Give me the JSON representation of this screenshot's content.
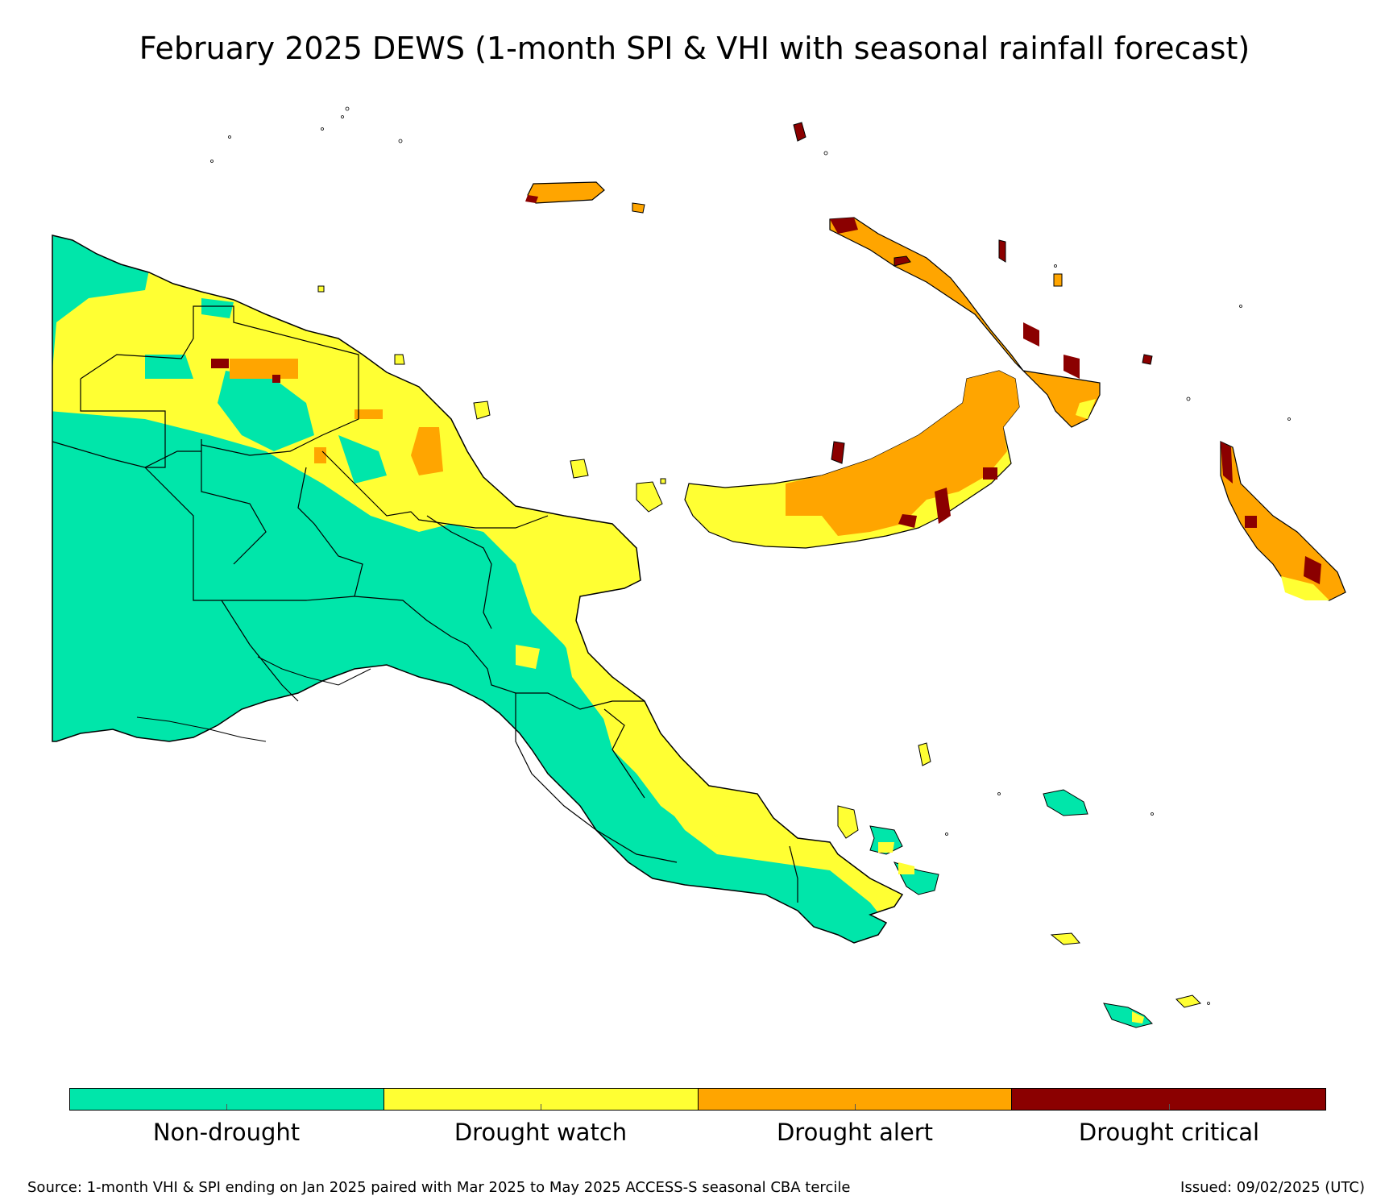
{
  "title": "February 2025 DEWS (1-month SPI & VHI with seasonal rainfall forecast)",
  "legend": [
    {
      "label": "Non-drought",
      "color": "#00e6aa"
    },
    {
      "label": "Drought watch",
      "color": "#ffff33"
    },
    {
      "label": "Drought alert",
      "color": "#ffa500"
    },
    {
      "label": "Drought critical",
      "color": "#8b0000"
    }
  ],
  "footer": {
    "source": "Source: 1-month VHI & SPI ending on Jan 2025 paired with Mar 2025 to May 2025 ACCESS-S seasonal CBA tercile",
    "issued": "Issued: 09/02/2025 (UTC)"
  }
}
